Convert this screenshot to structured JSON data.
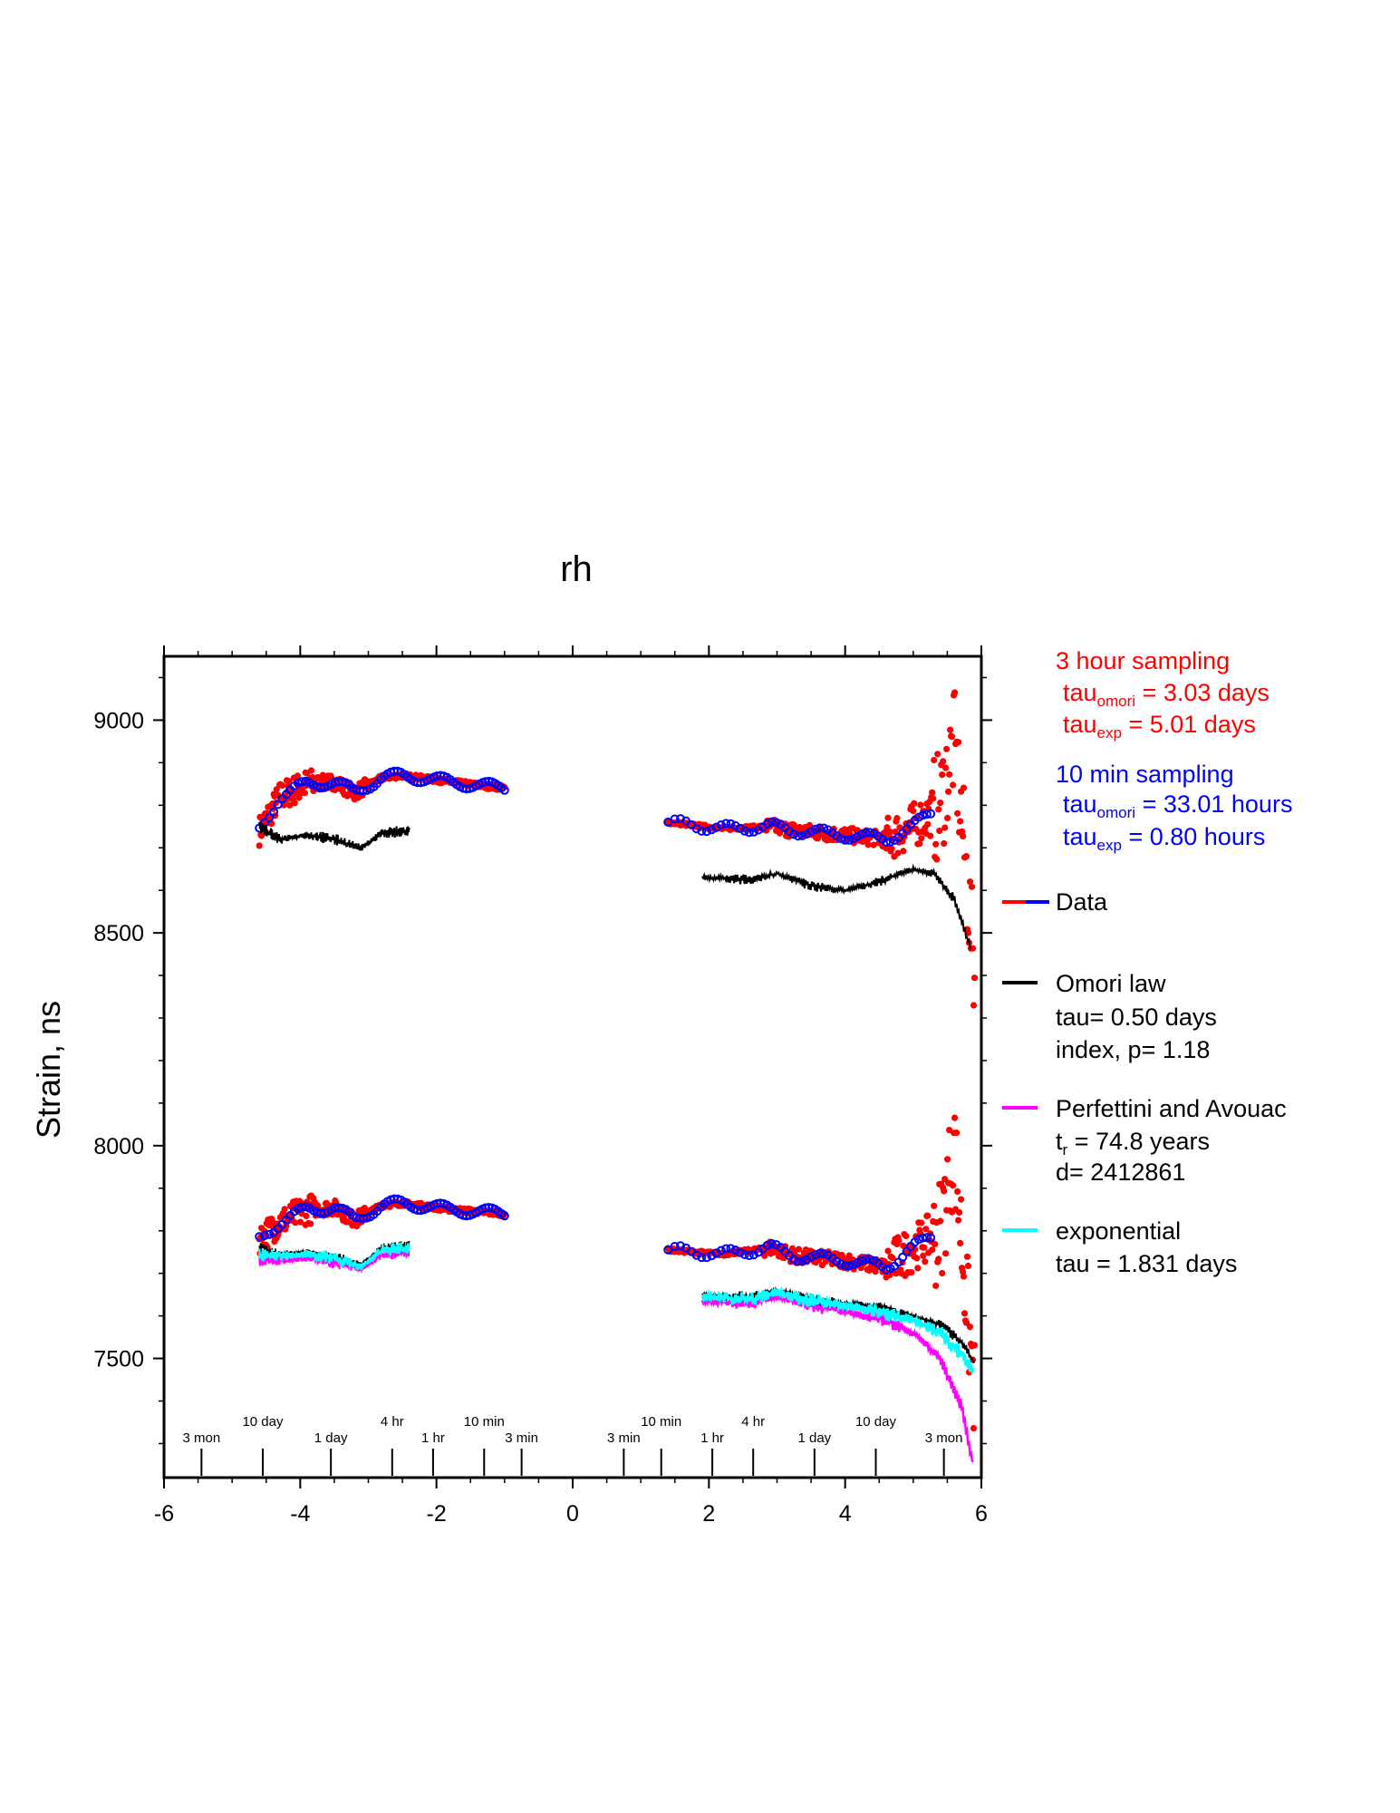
{
  "chart_data": {
    "type": "scatter",
    "title": "rh",
    "xlabel": "",
    "ylabel": "Strain, ns",
    "xlim": [
      -6,
      6
    ],
    "ylim": [
      7220,
      9150
    ],
    "x_ticks": [
      "-6",
      "-4",
      "-2",
      "0",
      "2",
      "4",
      "6"
    ],
    "y_ticks": [
      "7500",
      "8000",
      "8500",
      "9000"
    ],
    "time_scale": {
      "left": [
        {
          "label": "3 mon",
          "x": -5.45
        },
        {
          "label": "10 day",
          "x": -4.55
        },
        {
          "label": "1 day",
          "x": -3.55
        },
        {
          "label": "4 hr",
          "x": -2.65
        },
        {
          "label": "1 hr",
          "x": -2.05
        },
        {
          "label": "10 min",
          "x": -1.3
        },
        {
          "label": "3 min",
          "x": -0.75
        }
      ],
      "right": [
        {
          "label": "3 min",
          "x": 0.75
        },
        {
          "label": "10 min",
          "x": 1.3
        },
        {
          "label": "1 hr",
          "x": 2.05
        },
        {
          "label": "4 hr",
          "x": 2.65
        },
        {
          "label": "1 day",
          "x": 3.55
        },
        {
          "label": "10 day",
          "x": 4.45
        },
        {
          "label": "3 mon",
          "x": 5.45
        }
      ]
    },
    "annotations": {
      "three_hour": {
        "heading": "3 hour sampling",
        "tau_omori_prefix": "tau",
        "tau_omori_sub": "omori",
        "tau_omori_value": " = 3.03 days",
        "tau_exp_prefix": "tau",
        "tau_exp_sub": "exp",
        "tau_exp_value": " = 5.01 days"
      },
      "ten_min": {
        "heading": "10 min sampling",
        "tau_omori_prefix": "tau",
        "tau_omori_sub": "omori",
        "tau_omori_value": " = 33.01 hours",
        "tau_exp_prefix": "tau",
        "tau_exp_sub": "exp",
        "tau_exp_value": " = 0.80 hours"
      }
    },
    "legend": {
      "data": "Data",
      "omori": "Omori law",
      "omori_tau": "tau= 0.50 days",
      "omori_index": "index, p= 1.18",
      "perfettini": "Perfettini and Avouac",
      "perfettini_tr_prefix": "t",
      "perfettini_tr_sub": "r",
      "perfettini_tr_value": " = 74.8 years",
      "perfettini_d": "d= 2412861",
      "exponential": "exponential",
      "exponential_tau": "tau = 1.831 days"
    },
    "series": [
      {
        "name": "Data",
        "color": "#ff0000",
        "secondary_color": "#0000ff",
        "upper_left": [
          [
            -4.6,
            8740
          ],
          [
            -4.3,
            8820
          ],
          [
            -3.9,
            8850
          ],
          [
            -3.5,
            8855
          ],
          [
            -3.2,
            8830
          ],
          [
            -2.8,
            8865
          ],
          [
            -2.5,
            8870
          ],
          [
            -1.8,
            8855
          ],
          [
            -1.0,
            8840
          ]
        ],
        "upper_right": [
          [
            1.4,
            8760
          ],
          [
            2.2,
            8745
          ],
          [
            2.9,
            8750
          ],
          [
            3.3,
            8740
          ],
          [
            4.0,
            8730
          ],
          [
            4.6,
            8720
          ],
          [
            5.0,
            8750
          ],
          [
            5.4,
            8800
          ],
          [
            5.6,
            8950
          ],
          [
            5.75,
            8700
          ],
          [
            5.9,
            8400
          ]
        ],
        "lower_left": [
          [
            -4.6,
            7780
          ],
          [
            -4.3,
            7820
          ],
          [
            -3.9,
            7850
          ],
          [
            -3.5,
            7855
          ],
          [
            -3.2,
            7825
          ],
          [
            -2.8,
            7860
          ],
          [
            -2.5,
            7865
          ],
          [
            -1.8,
            7850
          ],
          [
            -1.0,
            7840
          ]
        ],
        "lower_right": [
          [
            1.4,
            7755
          ],
          [
            2.2,
            7745
          ],
          [
            2.9,
            7760
          ],
          [
            3.3,
            7740
          ],
          [
            4.0,
            7730
          ],
          [
            4.6,
            7715
          ],
          [
            5.0,
            7760
          ],
          [
            5.4,
            7800
          ],
          [
            5.6,
            8000
          ],
          [
            5.75,
            7700
          ],
          [
            5.9,
            7420
          ]
        ]
      },
      {
        "name": "Omori law",
        "color": "#000000",
        "upper_left": [
          [
            -4.6,
            8750
          ],
          [
            -4.3,
            8720
          ],
          [
            -3.9,
            8730
          ],
          [
            -3.5,
            8720
          ],
          [
            -3.1,
            8700
          ],
          [
            -2.8,
            8735
          ],
          [
            -2.4,
            8740
          ]
        ],
        "upper_right": [
          [
            1.9,
            8630
          ],
          [
            2.6,
            8625
          ],
          [
            3.0,
            8640
          ],
          [
            3.5,
            8610
          ],
          [
            4.0,
            8600
          ],
          [
            4.5,
            8620
          ],
          [
            5.0,
            8650
          ],
          [
            5.3,
            8640
          ],
          [
            5.6,
            8580
          ],
          [
            5.85,
            8460
          ]
        ],
        "lower_left": [
          [
            -4.6,
            7760
          ],
          [
            -4.3,
            7745
          ],
          [
            -3.9,
            7750
          ],
          [
            -3.5,
            7740
          ],
          [
            -3.1,
            7720
          ],
          [
            -2.8,
            7760
          ],
          [
            -2.4,
            7765
          ]
        ],
        "lower_right": [
          [
            1.9,
            7650
          ],
          [
            2.6,
            7645
          ],
          [
            3.0,
            7660
          ],
          [
            3.5,
            7640
          ],
          [
            4.0,
            7630
          ],
          [
            4.5,
            7620
          ],
          [
            5.0,
            7600
          ],
          [
            5.4,
            7580
          ],
          [
            5.7,
            7540
          ],
          [
            5.9,
            7490
          ]
        ]
      },
      {
        "name": "Perfettini and Avouac",
        "color": "#ff00ff",
        "lower_left": [
          [
            -4.6,
            7730
          ],
          [
            -4.3,
            7730
          ],
          [
            -3.9,
            7735
          ],
          [
            -3.5,
            7725
          ],
          [
            -3.1,
            7710
          ],
          [
            -2.8,
            7745
          ],
          [
            -2.4,
            7750
          ]
        ],
        "lower_right": [
          [
            1.9,
            7635
          ],
          [
            2.6,
            7630
          ],
          [
            3.0,
            7645
          ],
          [
            3.5,
            7625
          ],
          [
            4.0,
            7610
          ],
          [
            4.5,
            7595
          ],
          [
            5.0,
            7560
          ],
          [
            5.4,
            7500
          ],
          [
            5.7,
            7390
          ],
          [
            5.88,
            7250
          ]
        ]
      },
      {
        "name": "exponential",
        "color": "#00ffff",
        "lower_left": [
          [
            -4.6,
            7745
          ],
          [
            -4.3,
            7740
          ],
          [
            -3.9,
            7745
          ],
          [
            -3.5,
            7735
          ],
          [
            -3.1,
            7715
          ],
          [
            -2.8,
            7755
          ],
          [
            -2.4,
            7760
          ]
        ],
        "lower_right": [
          [
            1.9,
            7645
          ],
          [
            2.6,
            7640
          ],
          [
            3.0,
            7655
          ],
          [
            3.5,
            7635
          ],
          [
            4.0,
            7625
          ],
          [
            4.5,
            7610
          ],
          [
            5.0,
            7590
          ],
          [
            5.4,
            7560
          ],
          [
            5.7,
            7510
          ],
          [
            5.88,
            7470
          ]
        ]
      }
    ]
  }
}
